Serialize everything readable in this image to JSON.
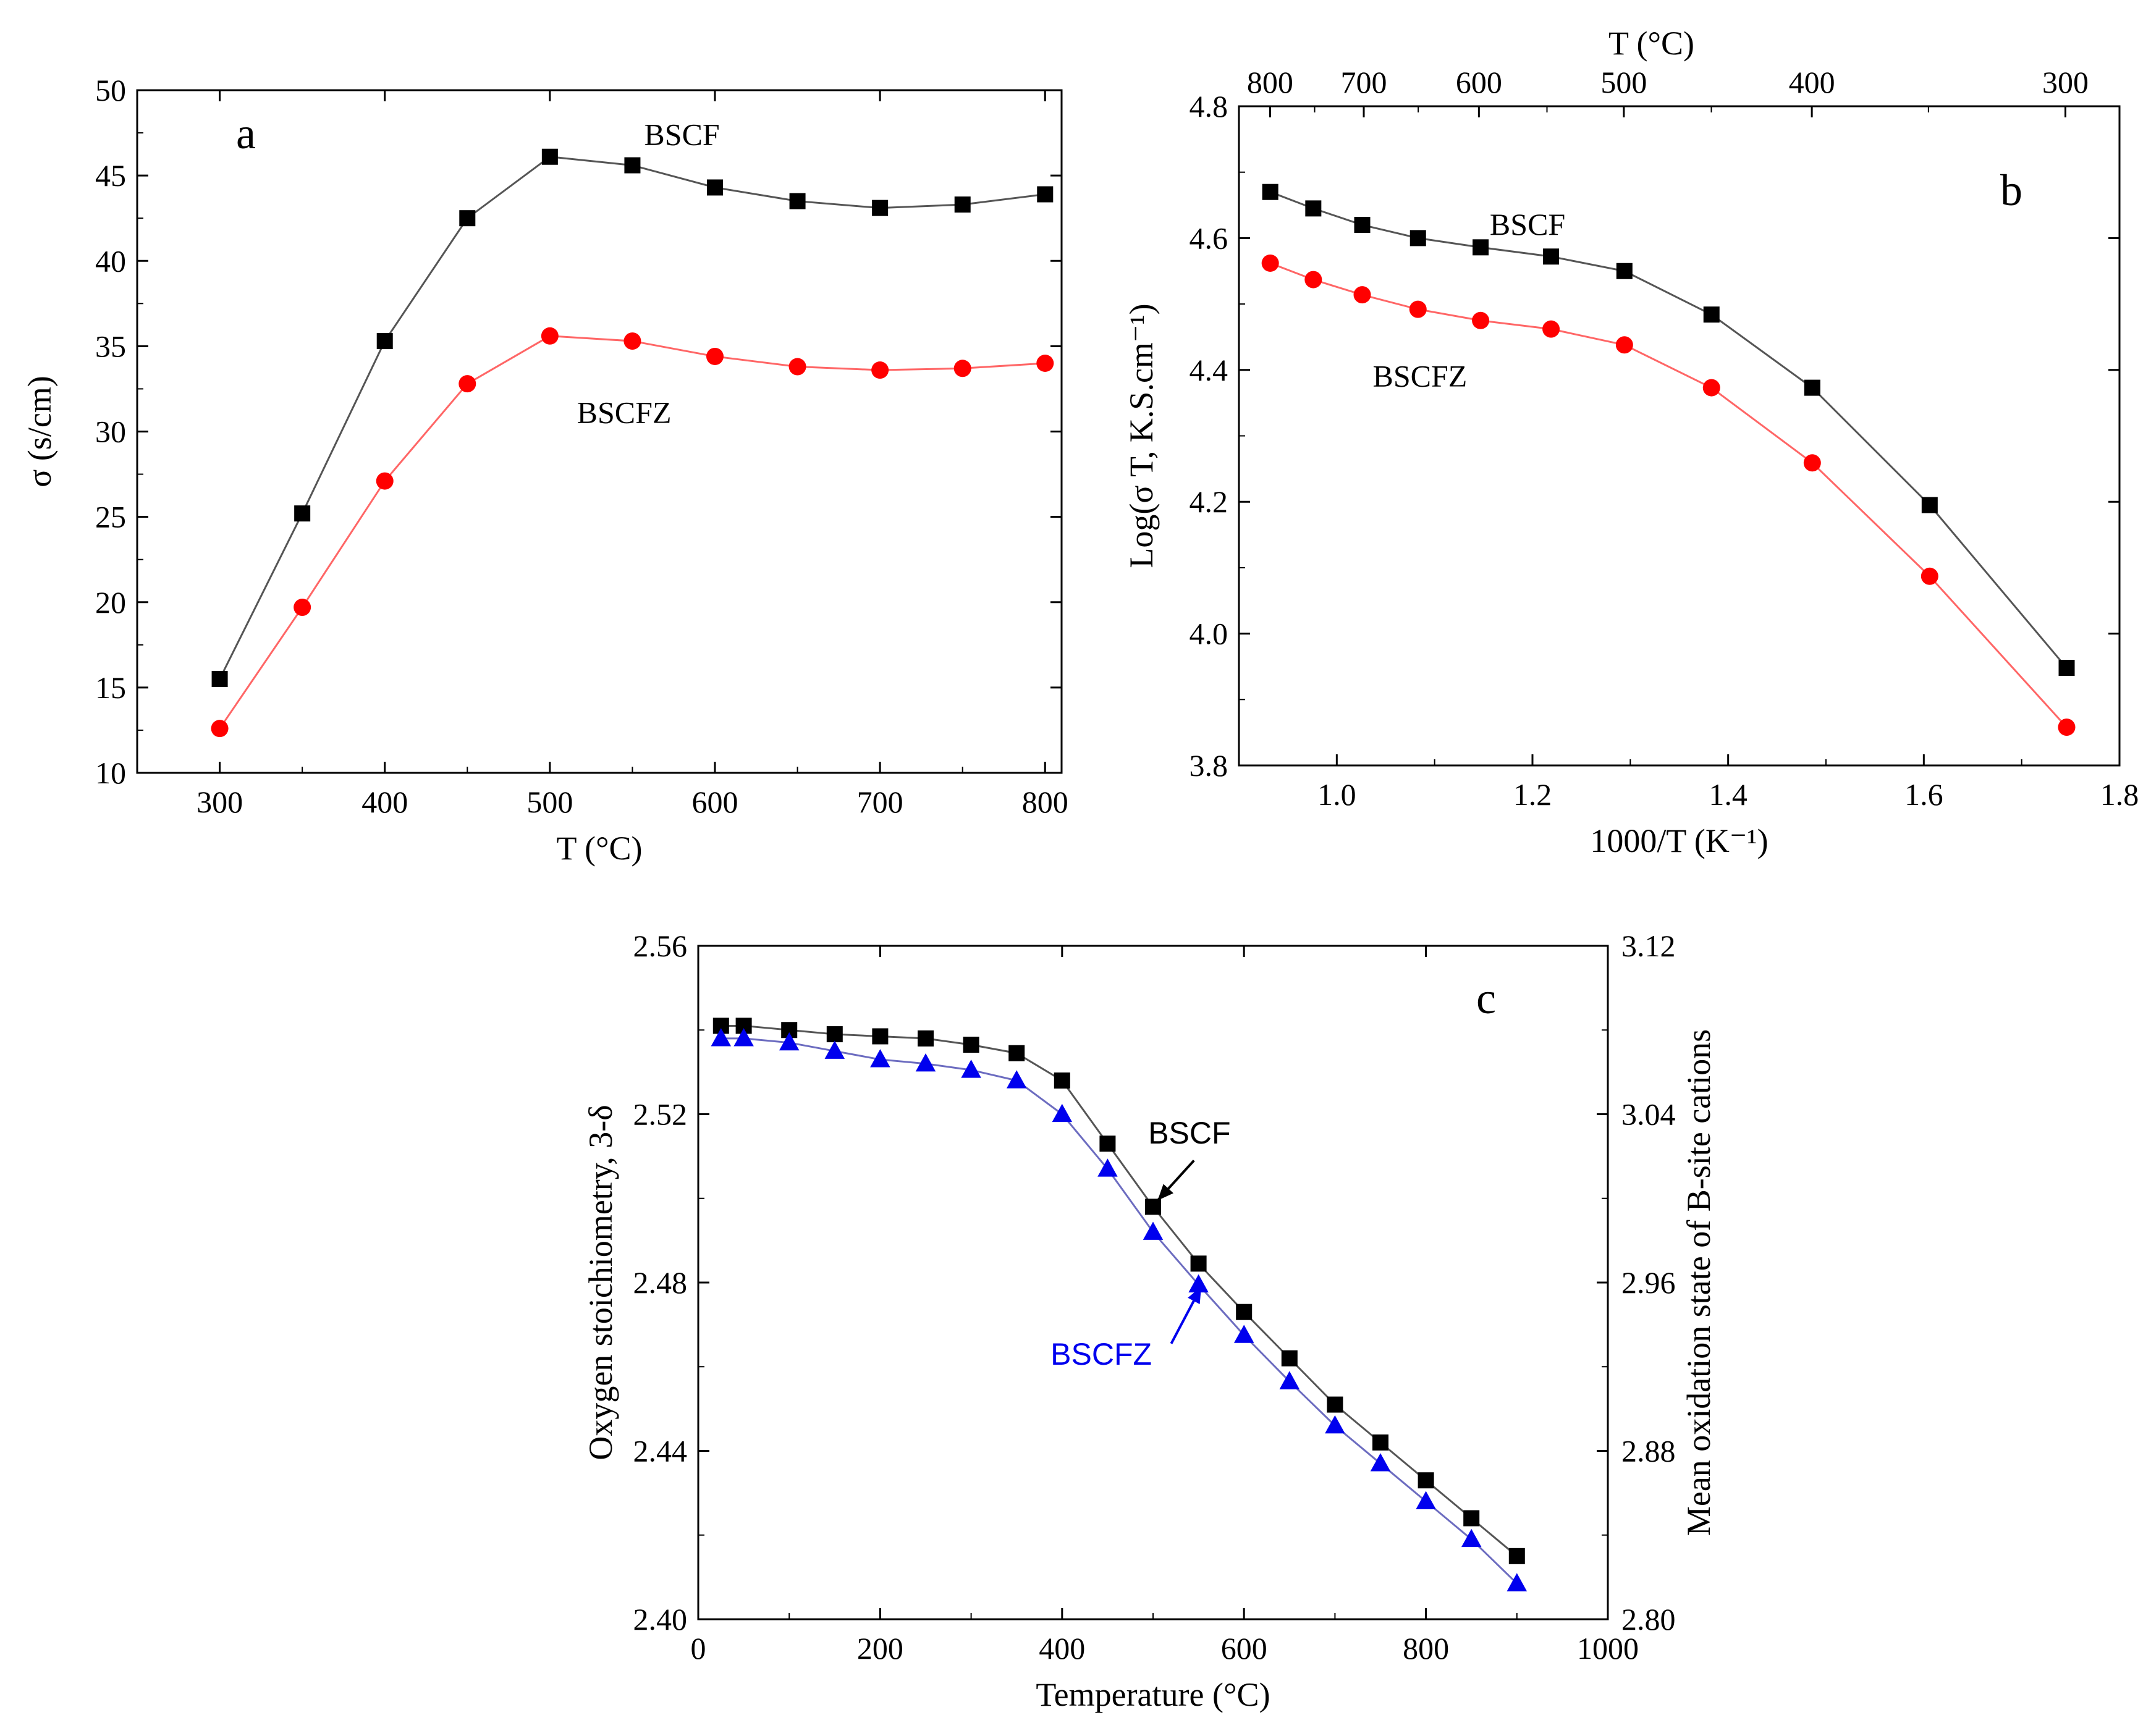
{
  "colors": {
    "bscf_marker": "#000000",
    "bscf_line": "#555555",
    "bscfz_ab_marker": "#ff0000",
    "bscfz_ab_line": "#ff6666",
    "bscfz_c_marker": "#0000ee",
    "bscfz_c_line": "#6c6cc0"
  },
  "chart_data": [
    {
      "id": "a",
      "type": "line",
      "panel_label": "a",
      "xlabel": "T (°C)",
      "ylabel": "σ (s/cm)",
      "xlim": [
        250,
        810
      ],
      "ylim": [
        10,
        50
      ],
      "xticks": [
        300,
        400,
        500,
        600,
        700,
        800
      ],
      "xtick_labels": [
        "300",
        "400",
        "500",
        "600",
        "700",
        "800"
      ],
      "yticks": [
        10,
        15,
        20,
        25,
        30,
        35,
        40,
        45,
        50
      ],
      "ytick_labels": [
        "10",
        "15",
        "20",
        "25",
        "30",
        "35",
        "40",
        "45",
        "50"
      ],
      "x": [
        300,
        350,
        400,
        450,
        500,
        550,
        600,
        650,
        700,
        750,
        800
      ],
      "series": [
        {
          "name": "BSCF",
          "marker": "square",
          "values": [
            15.5,
            25.2,
            35.3,
            42.5,
            46.1,
            45.6,
            44.3,
            43.5,
            43.1,
            43.3,
            43.9
          ]
        },
        {
          "name": "BSCFZ",
          "marker": "circle",
          "values": [
            12.6,
            19.7,
            27.1,
            32.8,
            35.6,
            35.3,
            34.4,
            33.8,
            33.6,
            33.7,
            34.0
          ]
        }
      ],
      "series_labels": [
        {
          "text": "BSCF",
          "at": [
            580,
            46.8
          ]
        },
        {
          "text": "BSCFZ",
          "at": [
            545,
            30.5
          ]
        }
      ]
    },
    {
      "id": "b",
      "type": "line",
      "panel_label": "b",
      "xlabel": "1000/T (K⁻¹)",
      "ylabel": "Log(σ T, K.S.cm⁻¹)",
      "top_axis_title": "T (°C)",
      "top_ticks": [
        "800",
        "700",
        "600",
        "500",
        "400",
        "300"
      ],
      "xlim": [
        0.9,
        1.8
      ],
      "ylim": [
        3.8,
        4.8
      ],
      "xticks": [
        1.0,
        1.2,
        1.4,
        1.6,
        1.8
      ],
      "xtick_labels": [
        "1.0",
        "1.2",
        "1.4",
        "1.6",
        "1.8"
      ],
      "yticks": [
        3.8,
        4.0,
        4.2,
        4.4,
        4.6,
        4.8
      ],
      "ytick_labels": [
        "3.8",
        "4.0",
        "4.2",
        "4.4",
        "4.6",
        "4.8"
      ],
      "x": [
        0.932,
        0.976,
        1.026,
        1.083,
        1.147,
        1.219,
        1.294,
        1.383,
        1.486,
        1.606,
        1.746
      ],
      "series": [
        {
          "name": "BSCF",
          "marker": "square",
          "values": [
            4.67,
            4.645,
            4.62,
            4.6,
            4.586,
            4.572,
            4.55,
            4.484,
            4.373,
            4.195,
            3.948
          ]
        },
        {
          "name": "BSCFZ",
          "marker": "circle",
          "values": [
            4.562,
            4.537,
            4.514,
            4.492,
            4.475,
            4.462,
            4.438,
            4.373,
            4.259,
            4.087,
            3.858
          ]
        }
      ],
      "series_labels": [
        {
          "text": "BSCF",
          "at": [
            1.195,
            4.605
          ]
        },
        {
          "text": "BSCFZ",
          "at": [
            1.085,
            4.375
          ]
        }
      ]
    },
    {
      "id": "c",
      "type": "line",
      "panel_label": "c",
      "xlabel": "Temperature (°C)",
      "ylabel": "Oxygen stoichiometry, 3-δ",
      "y2label": "Mean oxidation state of B-site cations",
      "xlim": [
        0,
        1000
      ],
      "ylim": [
        2.4,
        2.56
      ],
      "y2lim": [
        2.8,
        3.12
      ],
      "xticks": [
        0,
        200,
        400,
        600,
        800,
        1000
      ],
      "xtick_labels": [
        "0",
        "200",
        "400",
        "600",
        "800",
        "1000"
      ],
      "yticks": [
        2.4,
        2.44,
        2.48,
        2.52,
        2.56
      ],
      "ytick_labels": [
        "2.40",
        "2.44",
        "2.48",
        "2.52",
        "2.56"
      ],
      "y2ticks": [
        2.8,
        2.88,
        2.96,
        3.04,
        3.12
      ],
      "y2tick_labels": [
        "2.80",
        "2.88",
        "2.96",
        "3.04",
        "3.12"
      ],
      "x": [
        25,
        50,
        100,
        150,
        200,
        250,
        300,
        350,
        400,
        450,
        500,
        550,
        600,
        650,
        700,
        750,
        800,
        850,
        900
      ],
      "series": [
        {
          "name": "BSCF",
          "marker": "square",
          "values": [
            2.541,
            2.541,
            2.54,
            2.539,
            2.5385,
            2.538,
            2.5365,
            2.5345,
            2.528,
            2.513,
            2.498,
            2.4845,
            2.473,
            2.462,
            2.451,
            2.442,
            2.433,
            2.424,
            2.415
          ]
        },
        {
          "name": "BSCFZ",
          "marker": "triangle",
          "values": [
            2.538,
            2.538,
            2.537,
            2.535,
            2.533,
            2.532,
            2.5305,
            2.528,
            2.52,
            2.507,
            2.492,
            2.4795,
            2.4675,
            2.4565,
            2.446,
            2.437,
            2.428,
            2.419,
            2.4085
          ]
        }
      ],
      "series_labels": [
        {
          "text": "BSCF",
          "at": [
            540,
            2.513
          ]
        },
        {
          "text": "BSCFZ",
          "at": [
            443,
            2.4605
          ]
        }
      ],
      "annotations": [
        {
          "type": "arrow",
          "from": [
            545,
            2.509
          ],
          "to": [
            505,
            2.4995
          ],
          "series": "BSCF"
        },
        {
          "type": "arrow",
          "from": [
            520,
            2.4655
          ],
          "to": [
            553,
            2.479
          ],
          "series": "BSCFZ"
        }
      ]
    }
  ]
}
